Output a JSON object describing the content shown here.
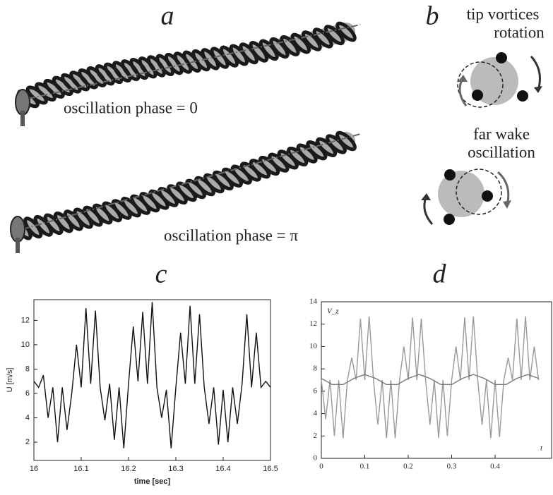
{
  "panels": {
    "a": "a",
    "b": "b",
    "c": "c",
    "d": "d"
  },
  "diagram": {
    "phase0": "oscillation phase = 0",
    "phasepi": "oscillation phase = π",
    "rotation": [
      "tip vortices",
      "rotation"
    ],
    "oscillation": [
      "far wake",
      "oscillation"
    ]
  },
  "chart_data": [
    {
      "type": "line",
      "xlabel": "time [sec]",
      "ylabel": "U [m/s]",
      "xlim": [
        16,
        16.5
      ],
      "xticks": [
        16,
        16.1,
        16.2,
        16.3,
        16.4,
        16.5
      ],
      "ylim": [
        0.5,
        13.7
      ],
      "yticks": [
        2,
        4,
        6,
        8,
        10,
        12
      ],
      "grid": false,
      "x": [
        16,
        16.01,
        16.02,
        16.03,
        16.04,
        16.05,
        16.06,
        16.07,
        16.08,
        16.09,
        16.1,
        16.11,
        16.12,
        16.13,
        16.14,
        16.15,
        16.16,
        16.17,
        16.18,
        16.19,
        16.2,
        16.21,
        16.22,
        16.23,
        16.24,
        16.25,
        16.26,
        16.27,
        16.28,
        16.29,
        16.3,
        16.31,
        16.32,
        16.33,
        16.34,
        16.35,
        16.36,
        16.37,
        16.38,
        16.39,
        16.4,
        16.41,
        16.42,
        16.43,
        16.44,
        16.45,
        16.46,
        16.47,
        16.48,
        16.49,
        16.5
      ],
      "series": [
        {
          "color": "#111111",
          "values": [
            7,
            6.5,
            7.5,
            4,
            6.5,
            2,
            6.5,
            3,
            6,
            10,
            6.5,
            13,
            6.8,
            12.8,
            6.5,
            3.8,
            6.8,
            2.2,
            6.5,
            1.5,
            6.8,
            11.5,
            7,
            12.7,
            6.8,
            13.5,
            6.5,
            4,
            6.3,
            1.5,
            6.5,
            11,
            6.8,
            13.2,
            6.8,
            12.5,
            6.5,
            3.5,
            6.5,
            1.8,
            6.3,
            2,
            6.5,
            3.5,
            6.8,
            12.5,
            6.5,
            11,
            6.5,
            7,
            6.5
          ]
        }
      ]
    },
    {
      "type": "line",
      "ylabel": "V_z",
      "xlabel": "t",
      "xlim": [
        0,
        0.53
      ],
      "xticks": [
        0,
        0.1,
        0.2,
        0.3,
        0.4
      ],
      "ylim": [
        0,
        14
      ],
      "yticks": [
        0,
        2,
        4,
        6,
        8,
        10,
        12,
        14
      ],
      "grid": false,
      "x": [
        0,
        0.01,
        0.02,
        0.03,
        0.04,
        0.05,
        0.06,
        0.07,
        0.08,
        0.09,
        0.1,
        0.11,
        0.12,
        0.13,
        0.14,
        0.15,
        0.16,
        0.17,
        0.18,
        0.19,
        0.2,
        0.21,
        0.22,
        0.23,
        0.24,
        0.25,
        0.26,
        0.27,
        0.28,
        0.29,
        0.3,
        0.31,
        0.32,
        0.33,
        0.34,
        0.35,
        0.36,
        0.37,
        0.38,
        0.39,
        0.4,
        0.41,
        0.42,
        0.43,
        0.44,
        0.45,
        0.46,
        0.47,
        0.48,
        0.49,
        0.5
      ],
      "series": [
        {
          "color": "#999999",
          "values": [
            7,
            3.5,
            7,
            2,
            7,
            1.8,
            7,
            9,
            7,
            12.5,
            7,
            12.7,
            7,
            3,
            7,
            1.8,
            7,
            1.8,
            7,
            10,
            7,
            12.6,
            7,
            12.5,
            7,
            3,
            7,
            1.8,
            7,
            2,
            7,
            10,
            7,
            12.6,
            7,
            12.7,
            7,
            3,
            7,
            1.8,
            7,
            1.9,
            7,
            9,
            7,
            12.5,
            7,
            12.7,
            7,
            10,
            7
          ]
        },
        {
          "color": "#777777",
          "x": [
            0,
            0.025,
            0.05,
            0.075,
            0.1,
            0.125,
            0.15,
            0.175,
            0.2,
            0.225,
            0.25,
            0.275,
            0.3,
            0.325,
            0.35,
            0.375,
            0.4,
            0.425,
            0.45,
            0.475,
            0.5
          ],
          "values": [
            7.15,
            6.6,
            6.6,
            7.15,
            7.5,
            7.15,
            6.6,
            6.6,
            7.15,
            7.5,
            7.15,
            6.6,
            6.6,
            7.15,
            7.5,
            7.15,
            6.6,
            6.6,
            7.15,
            7.5,
            7.15
          ]
        }
      ]
    }
  ]
}
